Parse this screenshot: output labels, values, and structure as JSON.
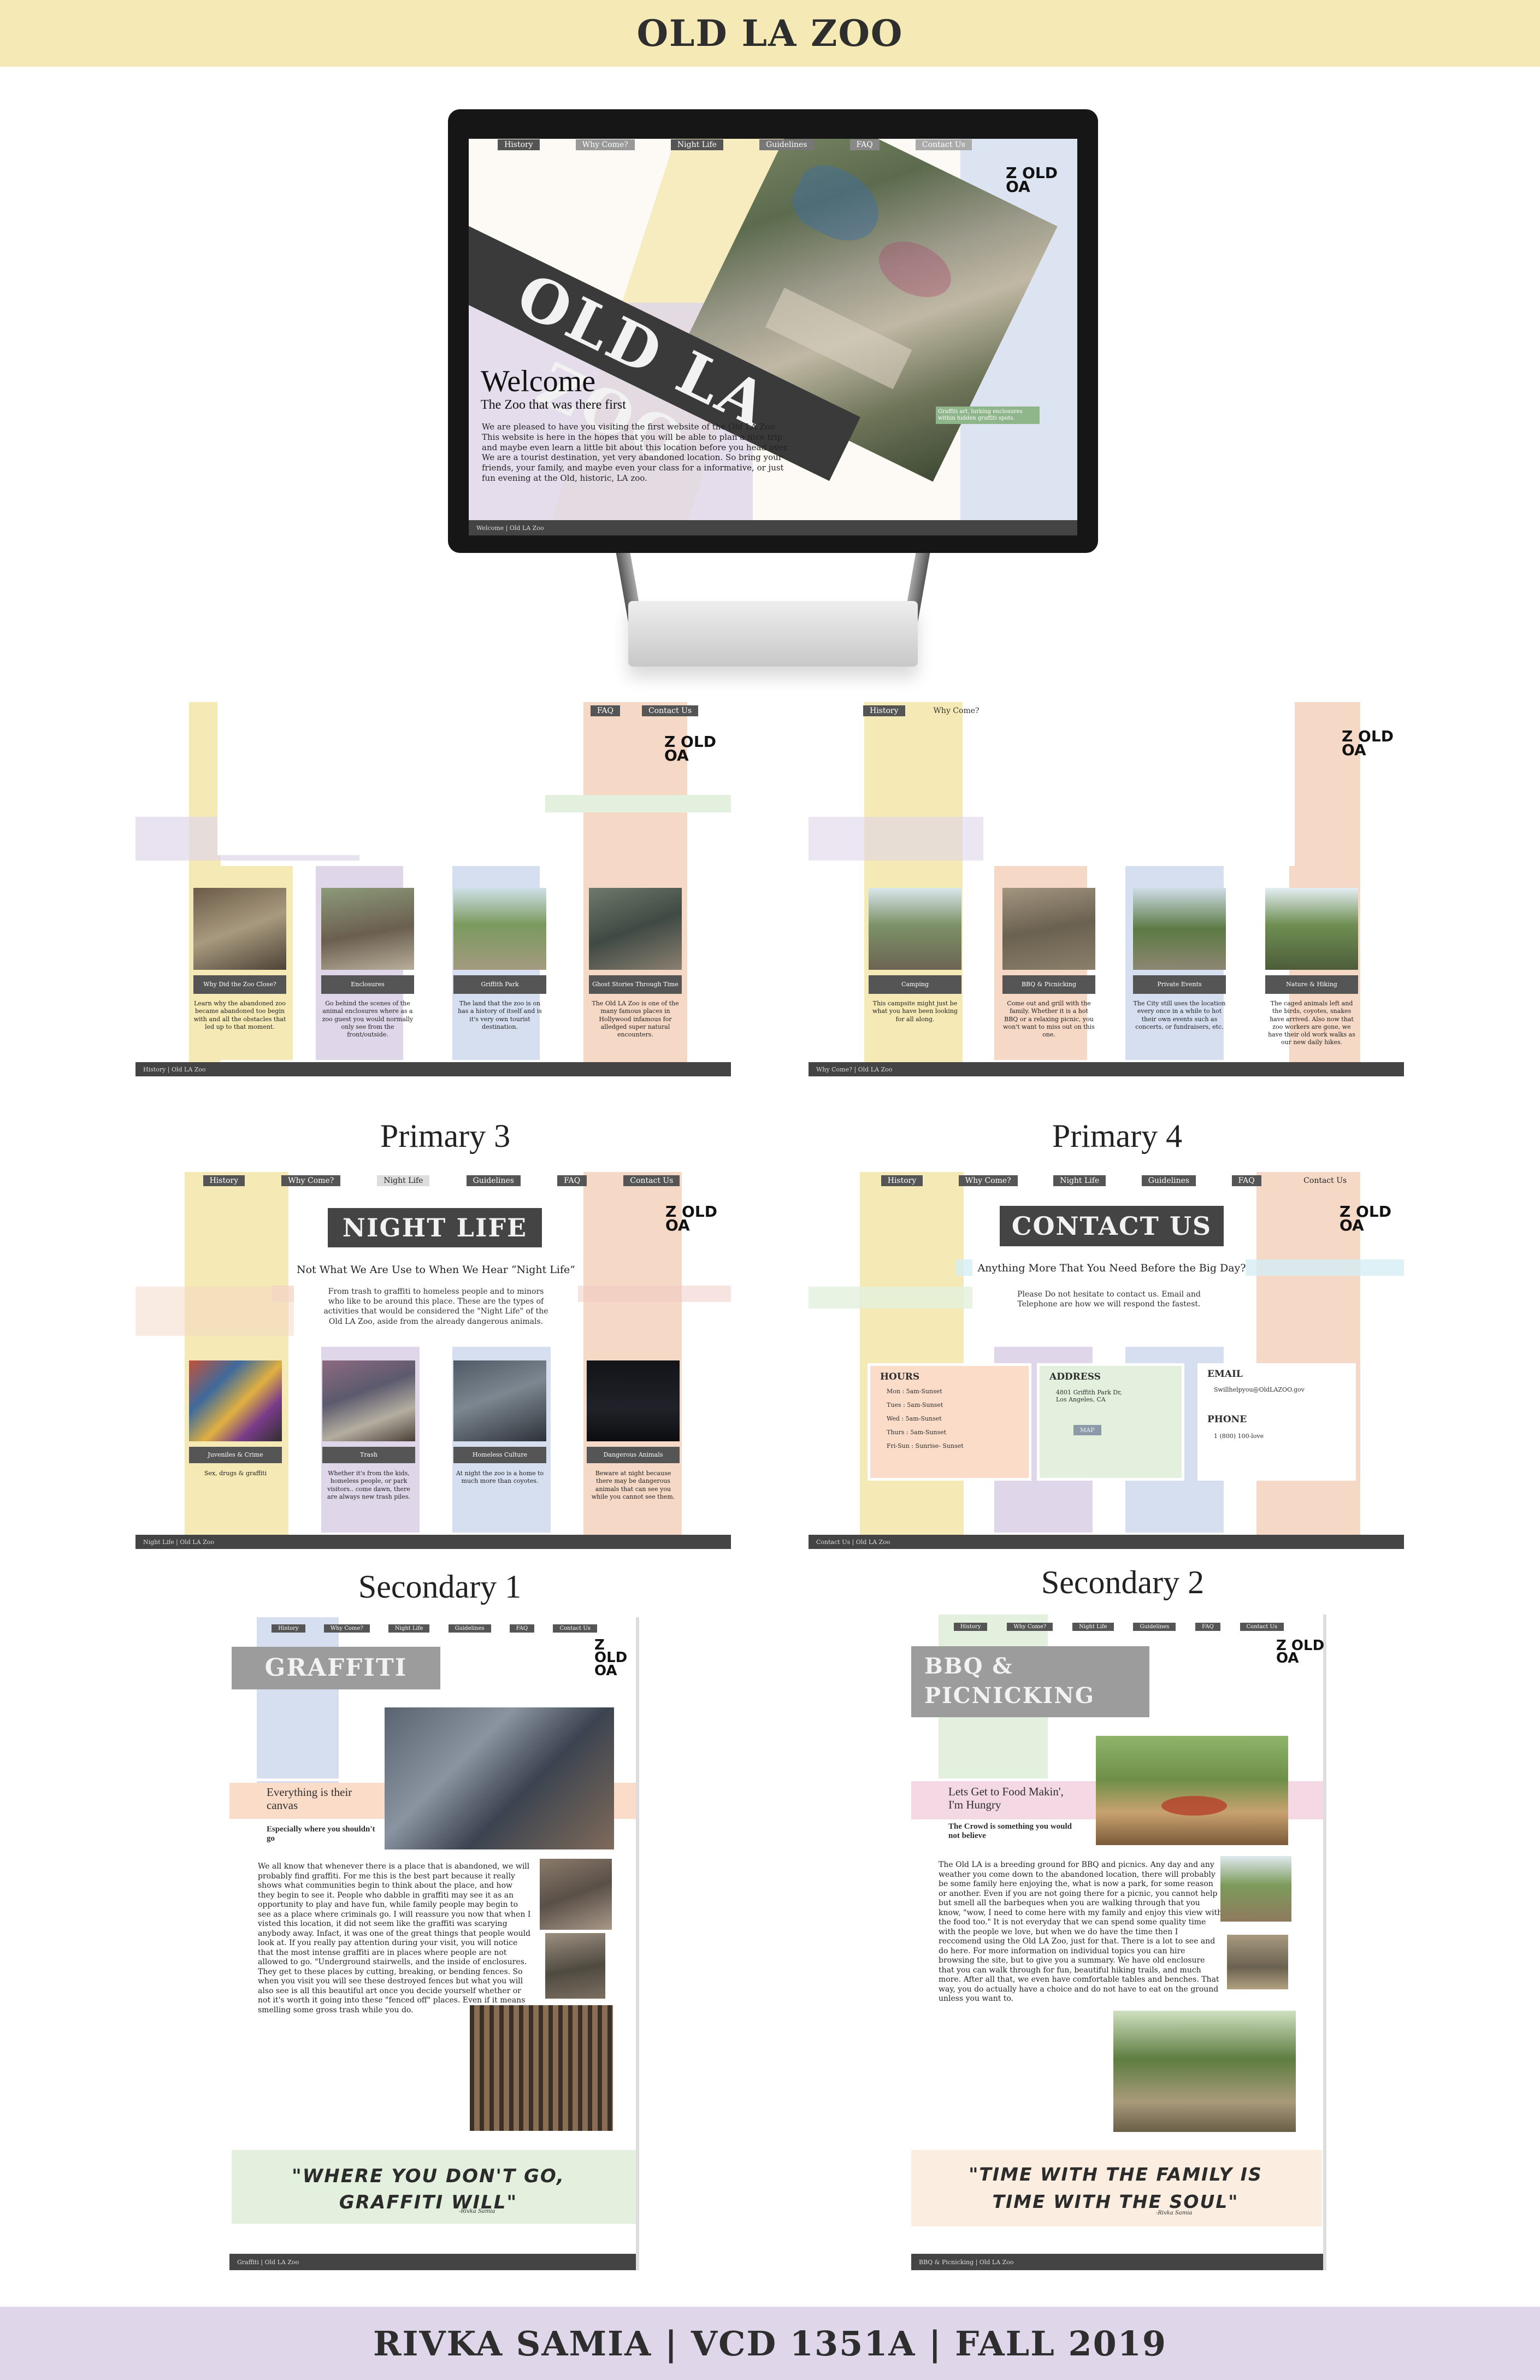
{
  "colors": {
    "yellow": "#f5e9b5",
    "lavender": "#e0d6ea",
    "pink": "#f0c9c3",
    "peach": "#f5d8c5",
    "blue": "#d6dff0",
    "green": "#e3f0dd",
    "dark": "#444444"
  },
  "header": {
    "title": "OLD LA ZOO"
  },
  "footer": {
    "credit": "RIVKA SAMIA | VCD 1351A | FALL 2019"
  },
  "logo": {
    "line1": "Z OLD",
    "line2": "OA"
  },
  "nav": {
    "history": "History",
    "why_come": "Why Come?",
    "night_life": "Night Life",
    "guidelines": "Guidelines",
    "faq": "FAQ",
    "contact": "Contact Us"
  },
  "desktop": {
    "big_title": "OLD LA ZOO",
    "welcome": "Welcome",
    "tagline": "The Zoo that was there first",
    "intro": "We are pleased to have you visiting the first website of the Old LA Zoo. This website is here in the hopes that you will be able to plan a nice trip and maybe even learn a little bit about this location before you head over. We are a tourist destination, yet very abandoned location. So bring your friends, your family, and maybe even your class for a informative, or just fun evening at the Old, historic, LA zoo.",
    "photo_caption": "Graffiti art, lurking enclosures within hidden graffiti spots.",
    "footer": "Welcome | Old LA Zoo"
  },
  "history_page": {
    "footer": "History | Old LA Zoo",
    "cards": [
      {
        "caption": "Why Did the Zoo Close?",
        "text": "Learn why the abandoned zoo became abandoned too begin with and all the obstacles that led up to that moment."
      },
      {
        "caption": "Enclosures",
        "text": "Go behind the scenes of the animal enclosures where as a zoo guest you would normally only see from the front/outside."
      },
      {
        "caption": "Griffith Park",
        "text": "The land that the zoo is on has a history of itself and is it's very own tourist destination."
      },
      {
        "caption": "Ghost Stories Through Time",
        "text": "The Old LA Zoo is one of the many famous places in Hollywood infamous for alledged super natural encounters."
      }
    ]
  },
  "why_come_page": {
    "footer": "Why Come? | Old LA Zoo",
    "cards": [
      {
        "caption": "Camping",
        "text": "This campsite might just be what you have been looking for all along."
      },
      {
        "caption": "BBQ & Picnicking",
        "text": "Come out and grill with the family. Whether it is a hot BBQ or a relaxing picnic, you won't want to miss out on this one."
      },
      {
        "caption": "Private Events",
        "text": "The City still uses the location every once in a while to hot their own events such as concerts, or fundraisers, etc."
      },
      {
        "caption": "Nature & Hiking",
        "text": "The caged animals left and the birds, coyotes, snakes have arrived. Also now that zoo workers are gone, we have their old work walks as our new daily hikes."
      }
    ]
  },
  "primary3": {
    "label": "Primary 3",
    "banner": "NIGHT LIFE",
    "subtitle": "Not What We Are Use to When We Hear “Night Life”",
    "intro": "From trash to graffiti to homeless people and to minors who like to be around this place. These are the types of activities that would be considered the \"Night Life\" of the Old LA Zoo, aside from the already dangerous animals.",
    "footer": "Night Life | Old LA Zoo",
    "cards": [
      {
        "caption": "Juveniles & Crime",
        "text": "Sex, drugs & graffiti"
      },
      {
        "caption": "Trash",
        "text": "Whether it's from the kids, homeless people, or park visitors.. come dawn, there are always new trash piles."
      },
      {
        "caption": "Homeless Culture",
        "text": "At night the zoo is a home to much more than coyotes."
      },
      {
        "caption": "Dangerous Animals",
        "text": "Beware at night because there may be dangerous animals that can see you while you cannot see them."
      }
    ]
  },
  "primary4": {
    "label": "Primary 4",
    "banner": "CONTACT US",
    "subtitle": "Anything More That You Need Before the Big Day?",
    "intro": "Please Do not hesitate to contact us. Email and Telephone are how we will respond the fastest.",
    "footer": "Contact Us | Old LA Zoo",
    "hours_title": "HOURS",
    "hours": [
      "Mon : 5am-Sunset",
      "Tues : 5am-Sunset",
      "Wed : 5am-Sunset",
      "Thurs : 5am-Sunset",
      "Fri-Sun : Sunrise- Sunset"
    ],
    "address_title": "ADDRESS",
    "address": [
      "4801 Griffith Park Dr,",
      "Los Angeles, CA"
    ],
    "map_btn": "MAP",
    "email_title": "EMAIL",
    "email": "Swillhelpyou@OldLAZOO.gov",
    "phone_title": "PHONE",
    "phone": "1 (800) 100-love"
  },
  "secondary1": {
    "label": "Secondary 1",
    "banner": "GRAFFITI",
    "callout1": "Everything is their canvas",
    "callout2": "Especially where you shouldn't go",
    "body": "We all know that whenever there is a place that is abandoned, we will probably find graffiti. For me this is the best part because it really shows what communities begin to think about the place, and how they begin to see it. People who dabble in graffiti may see it as an opportunity to play and have fun, while family people may begin to see as a place where criminals go. I will reassure you now that when I visted this location, it did not seem like the graffiti was scarying anybody away. Infact, it was one of the great things that people would look at. If you really pay attention during your visit, you will notice that the most intense graffiti are in places where people are not allowed to go. \"Underground stairwells, and the inside of enclosures. They get to these places by cutting, breaking, or bending fences. So when you visit you will see these destroyed fences but what you will also see is all this beautiful art once you decide yourself whether or not it's worth it going into these \"fenced off\" places. Even if it means smelling some gross trash while you do.",
    "quote": "\"WHERE YOU DON'T GO, GRAFFITI WILL\"",
    "quote_author": "-Rivka Samia",
    "footer": "Graffiti | Old LA Zoo"
  },
  "secondary2": {
    "label": "Secondary 2",
    "banner": "BBQ & PICNICKING",
    "callout1": "Lets Get to Food Makin', I'm Hungry",
    "callout2": "The Crowd is something you would not believe",
    "body": "The Old LA is a breeding ground for BBQ and picnics. Any day and any weather you come down to the abandoned location, there will probably be some family here enjoying the, what is now a park, for some reason or another. Even if you are not going there for a picnic, you cannot help but smell all the barbeques when you are walking through that you know, \"wow, I need to come here with my family and enjoy this view with the food too.\" It is not everyday that we can spend some quality time with the people we love, but when we do have the time then I reccomend using the Old LA Zoo, just for that. There is a lot to see and do here. For more information on individual topics you can hire browsing the site, but to give you a summary. We have old enclosure that you can walk through for fun, beautiful hiking trails, and much more. After all that, we even have comfortable tables and benches. That way, you do actually have a choice and do not have to eat on the ground unless you want to.",
    "quote": "\"TIME WITH THE FAMILY IS TIME WITH THE SOUL\"",
    "quote_author": "-Rivka Samia",
    "footer": "BBQ & Picnicking | Old LA Zoo"
  }
}
